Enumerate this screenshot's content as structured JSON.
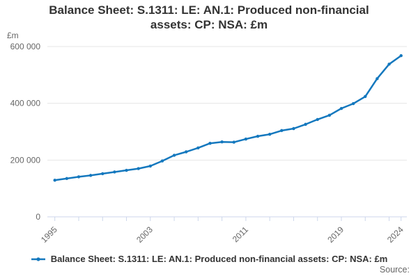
{
  "header": {
    "title": "Balance Sheet: S.1311: LE: AN.1: Produced non-financial assets: CP: NSA: £m"
  },
  "axes": {
    "unit_label": "£m",
    "y_tick_labels": [
      "0",
      "200 000",
      "400 000",
      "600 000"
    ],
    "x_tick_labels": [
      "1995",
      "2003",
      "2011",
      "2019",
      "2024"
    ]
  },
  "legend": {
    "label": "Balance Sheet: S.1311: LE: AN.1: Produced non-financial assets: CP: NSA: £m"
  },
  "footer": {
    "source_label": "Source:"
  },
  "colors": {
    "line": "#1478be",
    "grid": "#e6e6e6",
    "axis": "#ccd6eb",
    "muted_text": "#666666",
    "title_text": "#333333"
  },
  "chart_data": {
    "type": "line",
    "title": "Balance Sheet: S.1311: LE: AN.1: Produced non-financial assets: CP: NSA: £m",
    "ylabel": "£m",
    "x": [
      1995,
      1996,
      1997,
      1998,
      1999,
      2000,
      2001,
      2002,
      2003,
      2004,
      2005,
      2006,
      2007,
      2008,
      2009,
      2010,
      2011,
      2012,
      2013,
      2014,
      2015,
      2016,
      2017,
      2018,
      2019,
      2020,
      2021,
      2022,
      2023,
      2024
    ],
    "series": [
      {
        "name": "Balance Sheet: S.1311: LE: AN.1: Produced non-financial assets: CP: NSA: £m",
        "color": "#1478be",
        "values": [
          129000,
          135000,
          141000,
          146000,
          152000,
          158000,
          164000,
          170000,
          179000,
          197000,
          217000,
          229000,
          243000,
          259000,
          264000,
          263000,
          274000,
          284000,
          291000,
          304000,
          311000,
          326000,
          343000,
          358000,
          382000,
          399000,
          424000,
          487000,
          538000,
          568000
        ]
      }
    ],
    "ylim": [
      0,
      600000
    ],
    "yticks": {
      "values": [
        0,
        200000,
        400000,
        600000
      ],
      "labels": [
        "0",
        "200 000",
        "400 000",
        "600 000"
      ]
    },
    "xticks": {
      "labeled_years": [
        1995,
        2003,
        2011,
        2019,
        2024
      ],
      "minor_tick_years": [
        1995,
        1997,
        1999,
        2001,
        2003,
        2005,
        2007,
        2009,
        2011,
        2013,
        2015,
        2017,
        2019,
        2021,
        2023,
        2024
      ]
    },
    "grid": "horizontal",
    "legend_position": "bottom"
  }
}
